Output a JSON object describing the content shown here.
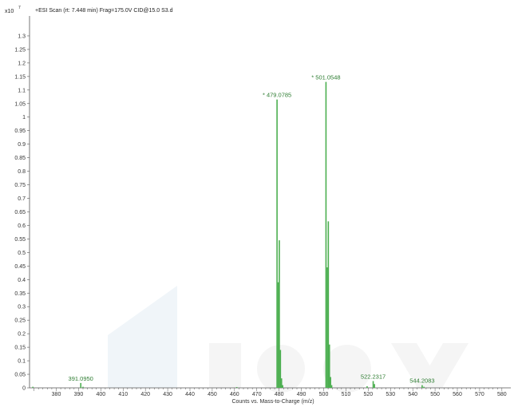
{
  "chart_data": {
    "type": "bar",
    "title": "+ESI Scan (rt: 7.448 min) Frag=175.0V CID@15.0 S3.d",
    "scale_label": "x10",
    "scale_exponent": "7",
    "xlabel": "Counts vs. Mass-to-Charge (m/z)",
    "ylabel": "",
    "xlim": [
      368,
      584
    ],
    "ylim": [
      0,
      1.35
    ],
    "xticks": [
      380,
      390,
      400,
      410,
      420,
      430,
      440,
      450,
      460,
      470,
      480,
      490,
      500,
      510,
      520,
      530,
      540,
      550,
      560,
      570,
      580
    ],
    "yticks": [
      0,
      0.05,
      0.1,
      0.15,
      0.2,
      0.25,
      0.3,
      0.35,
      0.4,
      0.45,
      0.5,
      0.55,
      0.6,
      0.65,
      0.7,
      0.75,
      0.8,
      0.85,
      0.9,
      0.95,
      1,
      1.05,
      1.1,
      1.15,
      1.2,
      1.25,
      1.3
    ],
    "ytick_labels": [
      "0",
      "0.05",
      "0.1",
      "0.15",
      "0.2",
      "0.25",
      "0.3",
      "0.35",
      "0.4",
      "0.45",
      "0.5",
      "0.55",
      "0.6",
      "0.65",
      "0.7",
      "0.75",
      "0.8",
      "0.85",
      "0.9",
      "0.95",
      "1",
      "1.05",
      "1.1",
      "1.15",
      "1.2",
      "1.25",
      "1.3"
    ],
    "grid": false,
    "bar_color": "#4caf50",
    "peaks": [
      {
        "mz": 369.5,
        "intensity": 0.004
      },
      {
        "mz": 391.0,
        "intensity": 0.018
      },
      {
        "mz": 392.0,
        "intensity": 0.004
      },
      {
        "mz": 461.0,
        "intensity": 0.003
      },
      {
        "mz": 479.08,
        "intensity": 1.065
      },
      {
        "mz": 479.6,
        "intensity": 0.39
      },
      {
        "mz": 480.1,
        "intensity": 0.545
      },
      {
        "mz": 480.6,
        "intensity": 0.14
      },
      {
        "mz": 481.1,
        "intensity": 0.035
      },
      {
        "mz": 481.6,
        "intensity": 0.01
      },
      {
        "mz": 501.05,
        "intensity": 1.13
      },
      {
        "mz": 501.6,
        "intensity": 0.445
      },
      {
        "mz": 502.1,
        "intensity": 0.615
      },
      {
        "mz": 502.6,
        "intensity": 0.16
      },
      {
        "mz": 503.1,
        "intensity": 0.04
      },
      {
        "mz": 503.6,
        "intensity": 0.01
      },
      {
        "mz": 519.5,
        "intensity": 0.006
      },
      {
        "mz": 522.23,
        "intensity": 0.025
      },
      {
        "mz": 522.8,
        "intensity": 0.014
      },
      {
        "mz": 544.21,
        "intensity": 0.01
      },
      {
        "mz": 545.0,
        "intensity": 0.004
      }
    ],
    "peak_labels": [
      {
        "mz": 391.0,
        "intensity": 0.018,
        "text": "391.0950"
      },
      {
        "mz": 479.08,
        "intensity": 1.065,
        "text": "* 479.0785"
      },
      {
        "mz": 501.05,
        "intensity": 1.13,
        "text": "* 501.0548"
      },
      {
        "mz": 522.23,
        "intensity": 0.025,
        "text": "522.2317"
      },
      {
        "mz": 544.21,
        "intensity": 0.01,
        "text": "544.2083"
      }
    ]
  }
}
